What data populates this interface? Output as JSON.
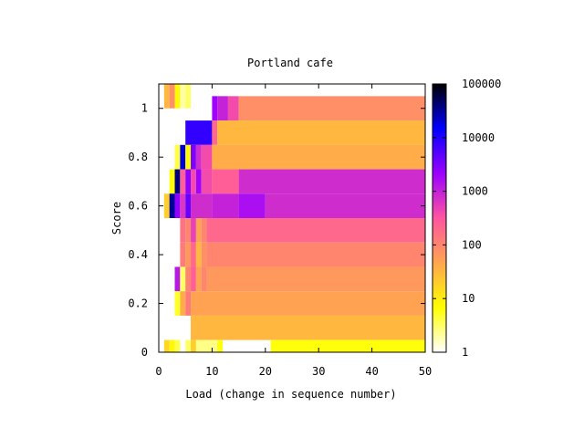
{
  "chart_data": {
    "type": "heatmap",
    "title": "Portland cafe",
    "xlabel": "Load (change in sequence number)",
    "ylabel": "Score",
    "xlim": [
      0,
      50
    ],
    "ylim": [
      0,
      1.1
    ],
    "x_ticks": [
      "0",
      "10",
      "20",
      "30",
      "40",
      "50"
    ],
    "y_ticks": [
      "0",
      "0.2",
      "0.4",
      "0.6",
      "0.8",
      "1"
    ],
    "colorbar": {
      "scale": "log",
      "range": [
        1,
        100000
      ],
      "ticks": [
        "1",
        "10",
        "100",
        "1000",
        "10000",
        "100000"
      ],
      "palette": [
        "#ffffff",
        "#ffff00",
        "#ffa54f",
        "#ff55a0",
        "#9b00ff",
        "#0000ff",
        "#000000"
      ]
    },
    "rows": [
      {
        "y": 1.05,
        "segments": [
          [
            1,
            2,
            1.5
          ],
          [
            2,
            3,
            1.9
          ],
          [
            3,
            4,
            0.9
          ],
          [
            4,
            5,
            0.3
          ],
          [
            5,
            6,
            0.5
          ]
        ]
      },
      {
        "y": 1.0,
        "segments": [
          [
            10,
            11,
            3.3
          ],
          [
            11,
            13,
            3.0
          ],
          [
            13,
            15,
            2.6
          ],
          [
            15,
            50,
            1.9
          ]
        ]
      },
      {
        "y": 0.9,
        "segments": [
          [
            5,
            10,
            3.9
          ],
          [
            10,
            11,
            2.3
          ],
          [
            11,
            50,
            1.5
          ]
        ]
      },
      {
        "y": 0.8,
        "segments": [
          [
            3,
            4,
            0.6
          ],
          [
            4,
            5,
            4.3
          ],
          [
            5,
            6,
            0.9
          ],
          [
            6,
            7,
            3.5
          ],
          [
            7,
            8,
            2.9
          ],
          [
            8,
            10,
            2.6
          ],
          [
            10,
            50,
            1.6
          ]
        ]
      },
      {
        "y": 0.7,
        "segments": [
          [
            2,
            3,
            0.8
          ],
          [
            3,
            4,
            4.6
          ],
          [
            4,
            5,
            2.4
          ],
          [
            5,
            6,
            3.4
          ],
          [
            6,
            7,
            2.6
          ],
          [
            7,
            8,
            3.3
          ],
          [
            8,
            10,
            2.6
          ],
          [
            10,
            15,
            2.4
          ],
          [
            15,
            50,
            2.9
          ]
        ]
      },
      {
        "y": 0.6,
        "segments": [
          [
            1,
            2,
            1.3
          ],
          [
            2,
            3,
            4.5
          ],
          [
            3,
            4,
            3.4
          ],
          [
            4,
            5,
            2.8
          ],
          [
            5,
            6,
            3.6
          ],
          [
            6,
            10,
            2.9
          ],
          [
            10,
            15,
            3.0
          ],
          [
            15,
            20,
            3.2
          ],
          [
            20,
            50,
            2.9
          ]
        ]
      },
      {
        "y": 0.5,
        "segments": [
          [
            4,
            5,
            2.2
          ],
          [
            5,
            6,
            2.0
          ],
          [
            6,
            7,
            2.7
          ],
          [
            7,
            8,
            1.7
          ],
          [
            8,
            9,
            2.0
          ],
          [
            9,
            50,
            2.3
          ]
        ]
      },
      {
        "y": 0.4,
        "segments": [
          [
            4,
            5,
            2.1
          ],
          [
            5,
            6,
            1.8
          ],
          [
            6,
            7,
            2.3
          ],
          [
            7,
            8,
            1.5
          ],
          [
            8,
            9,
            1.9
          ],
          [
            9,
            50,
            2.0
          ]
        ]
      },
      {
        "y": 0.3,
        "segments": [
          [
            3,
            4,
            3.1
          ],
          [
            4,
            5,
            0.5
          ],
          [
            5,
            6,
            2.0
          ],
          [
            6,
            7,
            2.4
          ],
          [
            7,
            8,
            1.7
          ],
          [
            8,
            9,
            2.0
          ],
          [
            9,
            50,
            1.8
          ]
        ]
      },
      {
        "y": 0.2,
        "segments": [
          [
            3,
            4,
            0.7
          ],
          [
            4,
            5,
            1.6
          ],
          [
            5,
            6,
            2.1
          ],
          [
            6,
            50,
            1.7
          ]
        ]
      },
      {
        "y": 0.1,
        "segments": [
          [
            6,
            50,
            1.5
          ]
        ]
      },
      {
        "y": 0.0,
        "segments": [
          [
            1,
            2,
            1.2
          ],
          [
            2,
            3,
            0.9
          ],
          [
            3,
            4,
            0.6
          ],
          [
            5,
            6,
            0.5
          ],
          [
            6,
            7,
            1.3
          ],
          [
            7,
            11,
            0.4
          ],
          [
            11,
            12,
            0.8
          ],
          [
            21,
            50,
            0.8
          ]
        ]
      }
    ]
  }
}
